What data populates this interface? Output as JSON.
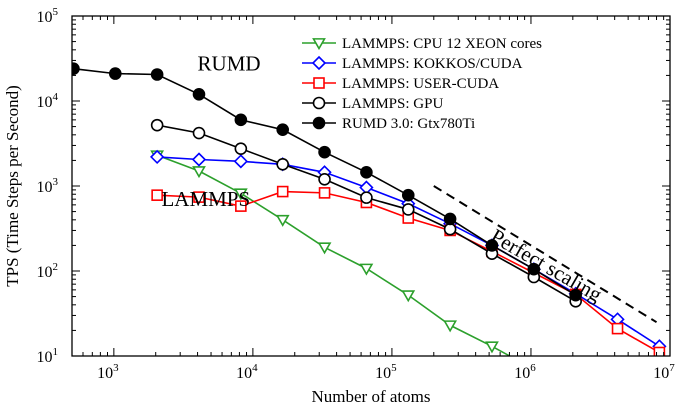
{
  "chart_data": {
    "type": "line",
    "xlabel": "Number of atoms",
    "ylabel": "TPS (Time Steps per Second)",
    "xscale": "log",
    "yscale": "log",
    "xlim": [
      500,
      10000000
    ],
    "ylim": [
      10,
      100000
    ],
    "x_ticks": [
      {
        "value": 1000,
        "base": "10",
        "exp": "3"
      },
      {
        "value": 10000,
        "base": "10",
        "exp": "4"
      },
      {
        "value": 100000,
        "base": "10",
        "exp": "5"
      },
      {
        "value": 1000000,
        "base": "10",
        "exp": "6"
      },
      {
        "value": 10000000,
        "base": "10",
        "exp": "7"
      }
    ],
    "y_ticks": [
      {
        "value": 10,
        "base": "10",
        "exp": "1"
      },
      {
        "value": 100,
        "base": "10",
        "exp": "2"
      },
      {
        "value": 1000,
        "base": "10",
        "exp": "3"
      },
      {
        "value": 10000,
        "base": "10",
        "exp": "4"
      },
      {
        "value": 100000,
        "base": "10",
        "exp": "5"
      }
    ],
    "legend_position": "top-right",
    "annotations": [
      {
        "text": "RUMD",
        "x": 4000,
        "y": 23000
      },
      {
        "text": "LAMMPS",
        "x": 2200,
        "y": 580
      },
      {
        "text": "Perfect scaling",
        "x": 500000,
        "y": 230,
        "rotate": 30
      }
    ],
    "reference_line": {
      "name": "Perfect scaling",
      "color": "#000000",
      "dash": true,
      "points": [
        [
          200000,
          1000
        ],
        [
          8000000,
          25
        ]
      ]
    },
    "series": [
      {
        "name": "LAMMPS: CPU 12 XEON cores",
        "color": "#2ca02c",
        "marker": "triangle-down",
        "filled": false,
        "x": [
          2048,
          4096,
          8192,
          16384,
          32768,
          65536,
          131072,
          262144,
          524288,
          1048576
        ],
        "y": [
          2300,
          1500,
          820,
          400,
          190,
          107,
          52,
          23,
          13,
          7
        ]
      },
      {
        "name": "LAMMPS: KOKKOS/CUDA",
        "color": "#0000ff",
        "marker": "diamond",
        "filled": false,
        "x": [
          2048,
          4096,
          8192,
          16384,
          32768,
          65536,
          131072,
          262144,
          524288,
          1048576,
          2097152,
          4194304,
          8388608
        ],
        "y": [
          2200,
          2050,
          1950,
          1800,
          1450,
          960,
          620,
          360,
          200,
          105,
          54,
          27,
          13
        ]
      },
      {
        "name": "LAMMPS: USER-CUDA",
        "color": "#ff0000",
        "marker": "square",
        "filled": false,
        "x": [
          2048,
          4096,
          8192,
          16384,
          32768,
          65536,
          131072,
          262144,
          524288,
          1048576,
          2097152,
          4194304,
          8388608
        ],
        "y": [
          780,
          740,
          580,
          860,
          830,
          640,
          420,
          300,
          170,
          95,
          53,
          21,
          11
        ]
      },
      {
        "name": "LAMMPS: GPU",
        "color": "#000000",
        "marker": "circle",
        "filled": false,
        "x": [
          2048,
          4096,
          8192,
          16384,
          32768,
          65536,
          131072,
          262144,
          524288,
          1048576,
          2097152
        ],
        "y": [
          5200,
          4200,
          2750,
          1800,
          1200,
          730,
          530,
          310,
          160,
          85,
          44
        ]
      },
      {
        "name": "RUMD 3.0: Gtx780Ti",
        "color": "#000000",
        "marker": "circle",
        "filled": true,
        "x": [
          512,
          1024,
          2048,
          4096,
          8192,
          16384,
          32768,
          65536,
          131072,
          262144,
          524288,
          1048576,
          2097152
        ],
        "y": [
          24000,
          21000,
          20500,
          12000,
          6000,
          4600,
          2500,
          1450,
          780,
          410,
          200,
          105,
          52
        ]
      }
    ]
  }
}
